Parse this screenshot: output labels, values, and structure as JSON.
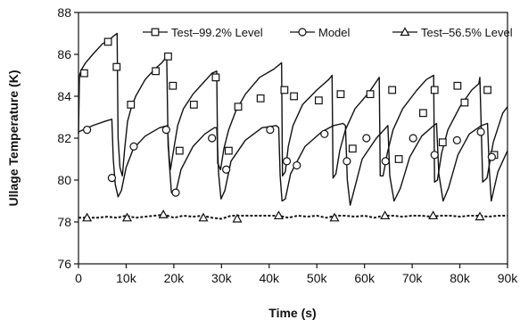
{
  "chart_data": {
    "type": "line",
    "xlabel": "Time (s)",
    "ylabel": "Ullage Temperature (K)",
    "xlim": [
      0,
      90000
    ],
    "ylim": [
      76,
      88
    ],
    "xticks": [
      0,
      10000,
      20000,
      30000,
      40000,
      50000,
      60000,
      70000,
      80000,
      90000
    ],
    "xtick_labels": [
      "0",
      "10k",
      "20k",
      "30k",
      "40k",
      "50k",
      "60k",
      "70k",
      "80k",
      "90k"
    ],
    "yticks": [
      76,
      78,
      80,
      82,
      84,
      86,
      88
    ],
    "ytick_labels": [
      "76",
      "78",
      "80",
      "82",
      "84",
      "86",
      "88"
    ],
    "grid": false,
    "legend_position": "top-right",
    "series": [
      {
        "name": "Test–99.2% Level",
        "marker": "square",
        "color": "#111111",
        "x": [
          0,
          200,
          700,
          1500,
          3000,
          5000,
          6500,
          7500,
          8100,
          8300,
          8700,
          9200,
          9700,
          10300,
          11000,
          12000,
          14000,
          16000,
          17500,
          18500,
          18800,
          19300,
          20000,
          20800,
          22000,
          24000,
          26000,
          28000,
          29000,
          29200,
          29800,
          30500,
          31500,
          33000,
          35000,
          38000,
          41000,
          42600,
          42800,
          43400,
          44000,
          45000,
          47000,
          50000,
          52500,
          53200,
          53400,
          54000,
          54800,
          56000,
          58000,
          61000,
          62500,
          63100,
          63300,
          63900,
          64800,
          66000,
          68000,
          71000,
          73000,
          74500,
          74700,
          75300,
          76200,
          77500,
          80000,
          82500,
          84000,
          84200,
          84800,
          85700,
          87000,
          89000,
          90000
        ],
        "y": [
          82.2,
          85.0,
          85.3,
          85.6,
          86.0,
          86.5,
          86.7,
          86.9,
          87.0,
          82.0,
          80.6,
          80.2,
          81.5,
          82.8,
          83.4,
          84.0,
          84.8,
          85.3,
          85.6,
          85.9,
          81.6,
          80.5,
          81.5,
          82.6,
          83.4,
          84.1,
          84.6,
          85.1,
          85.2,
          80.8,
          80.5,
          81.5,
          82.4,
          83.3,
          84.1,
          84.9,
          85.3,
          85.6,
          80.2,
          80.4,
          81.6,
          82.6,
          83.6,
          84.3,
          84.8,
          85.0,
          80.1,
          80.3,
          81.4,
          82.4,
          83.4,
          84.2,
          84.7,
          84.9,
          80.2,
          80.2,
          81.3,
          82.4,
          83.4,
          84.3,
          84.8,
          85.0,
          79.9,
          80.0,
          81.3,
          82.4,
          83.5,
          84.3,
          84.6,
          84.9,
          79.9,
          80.1,
          81.8,
          83.2,
          83.5
        ],
        "marker_x": [
          1200,
          6200,
          8000,
          11000,
          16200,
          18800,
          19800,
          21200,
          24200,
          28800,
          31500,
          33500,
          38200,
          43200,
          45200,
          50400,
          55000,
          57500,
          61200,
          65800,
          67200,
          72300,
          74700,
          76400,
          79500,
          81000,
          85800,
          87200
        ],
        "marker_y": [
          85.1,
          86.6,
          85.4,
          83.6,
          85.2,
          85.9,
          84.5,
          81.4,
          83.6,
          84.9,
          81.4,
          83.5,
          83.9,
          84.3,
          84.0,
          83.8,
          84.1,
          81.5,
          84.1,
          84.3,
          81.0,
          83.2,
          84.3,
          81.8,
          84.5,
          83.7,
          84.3,
          81.2
        ]
      },
      {
        "name": "Model",
        "marker": "circle",
        "color": "#111111",
        "x": [
          0,
          1000,
          3000,
          5500,
          7000,
          7300,
          7700,
          8300,
          9000,
          10000,
          11500,
          14000,
          17000,
          18700,
          19000,
          19500,
          20300,
          21500,
          24000,
          26500,
          28500,
          29000,
          29400,
          29900,
          30700,
          32000,
          35000,
          38500,
          41500,
          42000,
          42300,
          42700,
          43400,
          44500,
          47500,
          51000,
          53500,
          55500,
          56000,
          56400,
          57000,
          57800,
          59500,
          62500,
          64500,
          64900,
          65300,
          66200,
          67500,
          69500,
          72000,
          74500,
          75100,
          75600,
          76500,
          77600,
          79600,
          82000,
          84500,
          85800,
          86200,
          86600,
          87200,
          88000,
          90000
        ],
        "y": [
          82.3,
          82.4,
          82.6,
          82.8,
          82.9,
          81.0,
          79.8,
          79.2,
          79.5,
          80.6,
          81.5,
          82.1,
          82.5,
          82.6,
          81.0,
          79.4,
          79.3,
          80.5,
          81.6,
          82.2,
          82.5,
          82.5,
          80.3,
          79.1,
          79.5,
          80.9,
          81.9,
          82.5,
          82.6,
          82.5,
          80.2,
          79.0,
          79.1,
          80.3,
          81.6,
          82.3,
          82.6,
          82.7,
          82.6,
          80.0,
          78.8,
          79.5,
          81.0,
          82.0,
          82.5,
          82.6,
          80.2,
          79.0,
          79.6,
          81.1,
          82.1,
          82.6,
          82.7,
          80.3,
          79.0,
          79.6,
          81.2,
          82.2,
          82.6,
          82.7,
          80.4,
          79.0,
          79.6,
          80.4,
          81.4
        ],
        "marker_x": [
          1800,
          7000,
          11600,
          18400,
          20400,
          28000,
          31000,
          40200,
          43700,
          45800,
          51600,
          56300,
          60400,
          64400,
          70200,
          74700,
          79400,
          84400,
          86700
        ],
        "marker_y": [
          82.4,
          80.1,
          81.6,
          82.4,
          79.4,
          82.0,
          80.5,
          82.4,
          80.9,
          80.7,
          82.2,
          80.9,
          82.0,
          80.9,
          82.0,
          81.2,
          81.9,
          82.3,
          81.1
        ]
      },
      {
        "name": "Test–56.5% Level",
        "marker": "triangle",
        "color": "#111111",
        "x": [
          0,
          2000,
          4000,
          6000,
          8000,
          10000,
          12000,
          14000,
          16000,
          18000,
          20000,
          22000,
          24000,
          26000,
          28000,
          30000,
          32000,
          34000,
          36000,
          38000,
          40000,
          42000,
          44000,
          46000,
          48000,
          50000,
          52000,
          54000,
          56000,
          58000,
          60000,
          62000,
          64000,
          66000,
          68000,
          70000,
          72000,
          74000,
          76000,
          78000,
          80000,
          82000,
          84000,
          86000,
          88000,
          90000
        ],
        "y": [
          78.2,
          78.2,
          78.2,
          78.25,
          78.2,
          78.3,
          78.2,
          78.25,
          78.3,
          78.35,
          78.2,
          78.3,
          78.25,
          78.3,
          78.2,
          78.15,
          78.3,
          78.3,
          78.3,
          78.3,
          78.3,
          78.3,
          78.2,
          78.3,
          78.25,
          78.3,
          78.2,
          78.3,
          78.3,
          78.25,
          78.3,
          78.2,
          78.3,
          78.3,
          78.25,
          78.3,
          78.3,
          78.25,
          78.3,
          78.3,
          78.25,
          78.3,
          78.3,
          78.25,
          78.3,
          78.3
        ],
        "marker_x": [
          1800,
          10200,
          17800,
          26200,
          33300,
          42000,
          53700,
          64300,
          74400,
          84200
        ],
        "marker_y": [
          78.2,
          78.2,
          78.35,
          78.2,
          78.15,
          78.3,
          78.2,
          78.3,
          78.3,
          78.25
        ]
      }
    ]
  }
}
